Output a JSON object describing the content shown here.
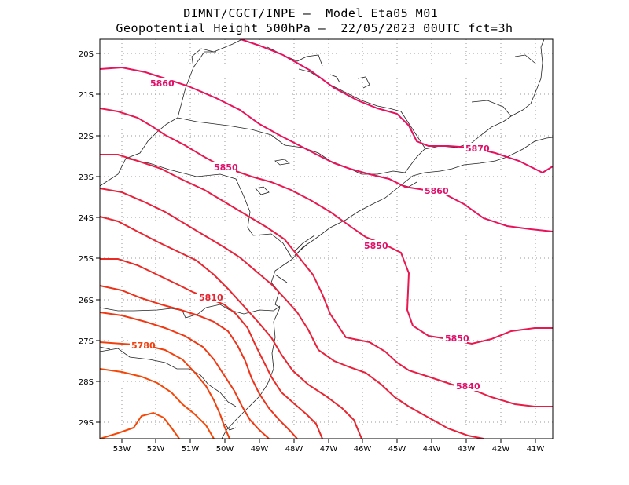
{
  "title": {
    "line1": "DIMNT/CGCT/INPE –  Model Eta05_M01_",
    "line2": "Geopotential Height 500hPa –  22/05/2023 00UTC fct=3h"
  },
  "map": {
    "lat_labels": [
      "20S",
      "21S",
      "22S",
      "23S",
      "24S",
      "25S",
      "26S",
      "27S",
      "28S",
      "29S"
    ],
    "lon_labels": [
      "53W",
      "52W",
      "51W",
      "50W",
      "49W",
      "48W",
      "47W",
      "46W",
      "45W",
      "44W",
      "43W",
      "42W",
      "41W"
    ],
    "contour_labels": [
      {
        "text": "5860",
        "color": "#e0106a"
      },
      {
        "text": "5870",
        "color": "#e0106a"
      },
      {
        "text": "5850",
        "color": "#e0106a"
      },
      {
        "text": "5860",
        "color": "#e0106a"
      },
      {
        "text": "5850",
        "color": "#e0106a"
      },
      {
        "text": "5850",
        "color": "#e0106a"
      },
      {
        "text": "5840",
        "color": "#e0106a"
      },
      {
        "text": "5810",
        "color": "#e6232e"
      },
      {
        "text": "5780",
        "color": "#f2400f"
      }
    ]
  },
  "colors": {
    "c5870": "#e8105e",
    "c5860": "#e8135a",
    "c5850": "#e81850",
    "c5840": "#e81c45",
    "c5830": "#e8203a",
    "c5820": "#e82530",
    "c5810": "#ea2a25",
    "c5800": "#ee321a",
    "c5790": "#f03812",
    "c5780": "#f2400c",
    "c5770": "#f44808"
  }
}
